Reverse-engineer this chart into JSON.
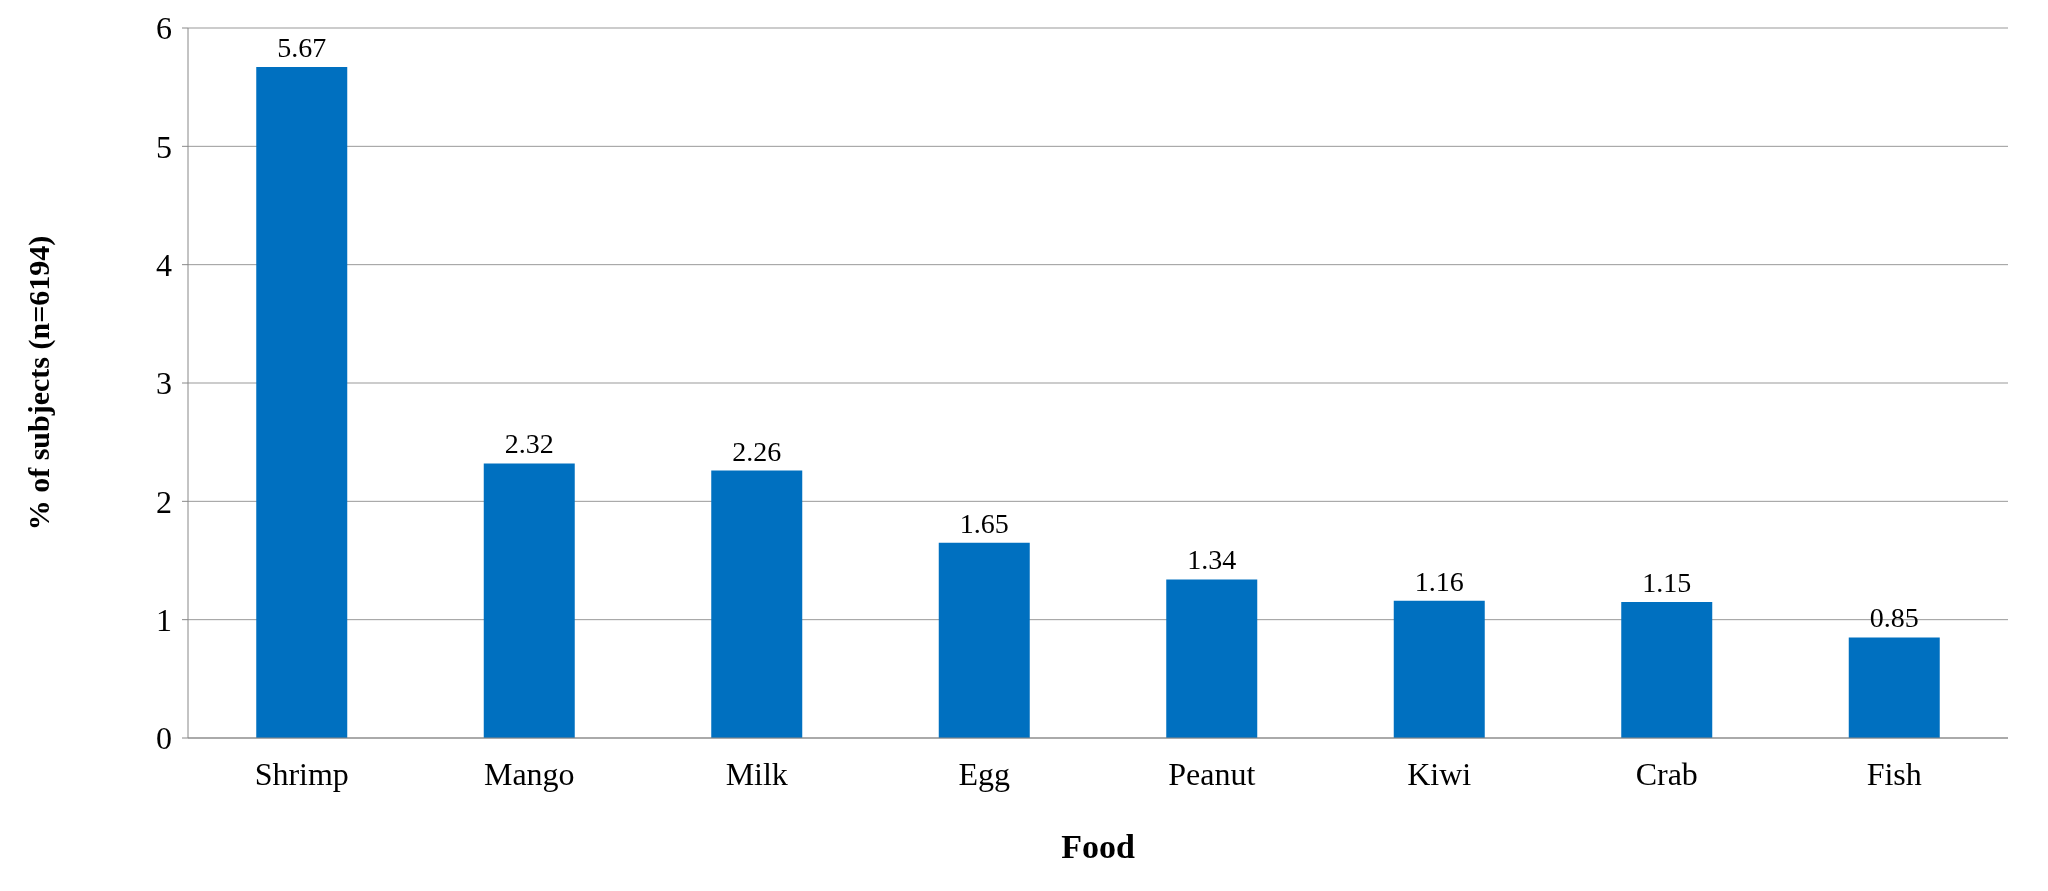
{
  "chart_data": {
    "type": "bar",
    "xlabel": "Food",
    "ylabel": "% of subjects (n=6194)",
    "categories": [
      "Shrimp",
      "Mango",
      "Milk",
      "Egg",
      "Peanut",
      "Kiwi",
      "Crab",
      "Fish"
    ],
    "values": [
      5.67,
      2.32,
      2.26,
      1.65,
      1.34,
      1.16,
      1.15,
      0.85
    ],
    "color": "#0070c0",
    "ylim": [
      0,
      6
    ],
    "yticks": [
      0,
      1,
      2,
      3,
      4,
      5,
      6
    ],
    "grid": "y",
    "data_labels": true,
    "legend": false
  }
}
